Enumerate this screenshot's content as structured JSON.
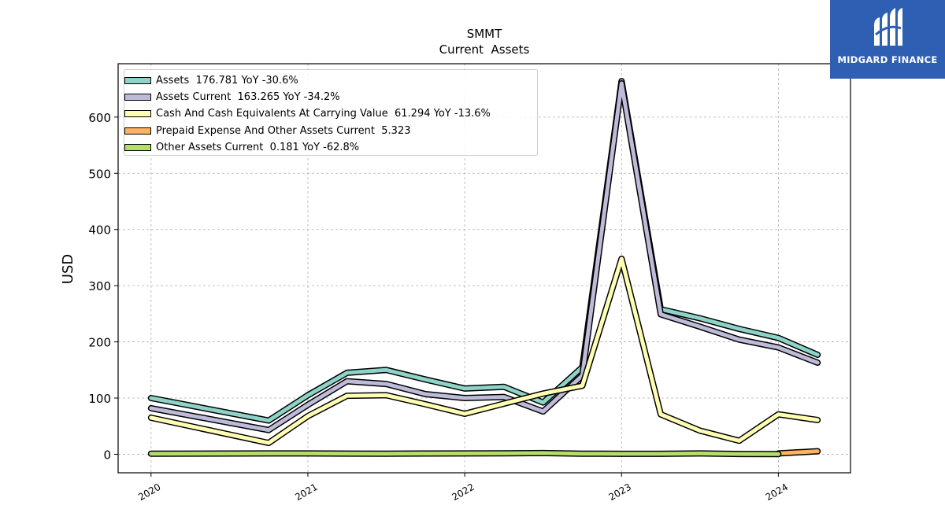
{
  "chart_data": {
    "type": "line",
    "title": "SMMT",
    "subtitle": "Current  Assets",
    "ylabel": "USD",
    "xlabel": "",
    "ylim": [
      -33,
      695
    ],
    "xlim": [
      2019.79,
      2024.46
    ],
    "yticks": [
      0,
      100,
      200,
      300,
      400,
      500,
      600
    ],
    "xticks": [
      {
        "value": 2020,
        "label": "2020"
      },
      {
        "value": 2021,
        "label": "2021"
      },
      {
        "value": 2022,
        "label": "2022"
      },
      {
        "value": 2023,
        "label": "2023"
      },
      {
        "value": 2024,
        "label": "2024"
      }
    ],
    "grid": true,
    "legend_position": "top-left",
    "series": [
      {
        "name": "Assets  176.781 YoY -30.6%",
        "color": "#8dd3c7",
        "x": [
          2020.0,
          2020.75,
          2021.0,
          2021.25,
          2021.5,
          2021.75,
          2022.0,
          2022.25,
          2022.5,
          2022.75,
          2023.0,
          2023.25,
          2023.5,
          2023.75,
          2024.0,
          2024.25
        ],
        "values": [
          100,
          60,
          105,
          145,
          150,
          133,
          117,
          120,
          92,
          155,
          664,
          258,
          242,
          223,
          207,
          177
        ]
      },
      {
        "name": "Assets Current  163.265 YoY -34.2%",
        "color": "#bebada",
        "x": [
          2020.0,
          2020.75,
          2021.0,
          2021.25,
          2021.5,
          2021.75,
          2022.0,
          2022.25,
          2022.5,
          2022.75,
          2023.0,
          2023.25,
          2023.5,
          2023.75,
          2024.0,
          2024.25
        ],
        "values": [
          82,
          43,
          88,
          130,
          125,
          107,
          100,
          102,
          76,
          140,
          660,
          249,
          227,
          204,
          190,
          163
        ]
      },
      {
        "name": "Cash And Cash Equivalents At Carrying Value  61.294 YoY -13.6%",
        "color": "#ffffb3",
        "x": [
          2020.0,
          2020.75,
          2021.0,
          2021.25,
          2021.5,
          2021.75,
          2022.0,
          2022.25,
          2022.5,
          2022.75,
          2023.0,
          2023.25,
          2023.5,
          2023.75,
          2024.0,
          2024.25
        ],
        "values": [
          65,
          20,
          68,
          104,
          105,
          89,
          72,
          90,
          108,
          122,
          348,
          71,
          42,
          24,
          71,
          61
        ]
      },
      {
        "name": "Prepaid Expense And Other Assets Current  5.323",
        "color": "#fdb462",
        "x": [
          2024.0,
          2024.25
        ],
        "values": [
          1.5,
          5.3
        ]
      },
      {
        "name": "Other Assets Current  0.181 YoY -62.8%",
        "color": "#b3de69",
        "x": [
          2020.0,
          2020.75,
          2021.0,
          2021.25,
          2021.5,
          2021.75,
          2022.0,
          2022.25,
          2022.5,
          2022.75,
          2023.0,
          2023.25,
          2023.5,
          2023.75,
          2024.0
        ],
        "values": [
          1.0,
          1.5,
          1.5,
          1.2,
          1.0,
          1.3,
          1.4,
          1.6,
          2.2,
          1.0,
          0.8,
          0.8,
          1.5,
          0.5,
          0.2
        ]
      }
    ]
  },
  "logo": {
    "text": "MIDGARD FINANCE"
  }
}
